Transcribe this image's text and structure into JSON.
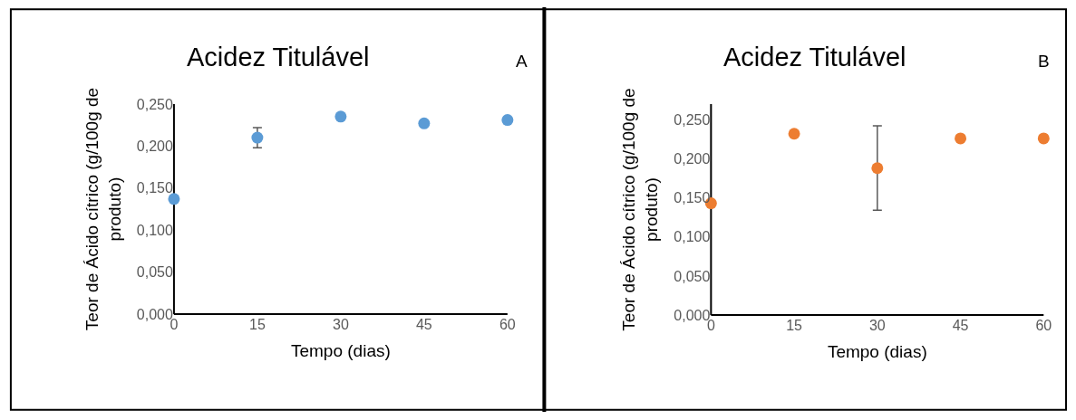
{
  "chart_data": [
    {
      "type": "scatter",
      "title": "Acidez Titulável",
      "xlabel": "Tempo (dias)",
      "ylabel": "Teor de Ácido cítrico (g/100g de produto)",
      "annotations": [
        "A"
      ],
      "x": [
        0,
        15,
        30,
        45,
        60
      ],
      "xlim": [
        0,
        60
      ],
      "xticks": [
        0,
        15,
        30,
        45,
        60
      ],
      "ylim": [
        0,
        0.25
      ],
      "yticks": [
        {
          "value": 0,
          "label": "0,000"
        },
        {
          "value": 0.05,
          "label": "0,050"
        },
        {
          "value": 0.1,
          "label": "0,100"
        },
        {
          "value": 0.15,
          "label": "0,150"
        },
        {
          "value": 0.2,
          "label": "0,200"
        },
        {
          "value": 0.25,
          "label": "0,250"
        }
      ],
      "marker": "circle",
      "series": [
        {
          "color": "#5b9bd5",
          "values": [
            0.137,
            0.21,
            0.235,
            0.227,
            0.231
          ],
          "errors": [
            null,
            0.012,
            null,
            null,
            null
          ]
        }
      ]
    },
    {
      "type": "scatter",
      "title": "Acidez Titulável",
      "xlabel": "Tempo (dias)",
      "ylabel": "Teor de Ácido cítrico (g/100g de produto)",
      "annotations": [
        "B"
      ],
      "x": [
        0,
        15,
        30,
        45,
        60
      ],
      "xlim": [
        0,
        60
      ],
      "xticks": [
        0,
        15,
        30,
        45,
        60
      ],
      "ylim": [
        0,
        0.27
      ],
      "yticks": [
        {
          "value": 0,
          "label": "0,000"
        },
        {
          "value": 0.05,
          "label": "0,050"
        },
        {
          "value": 0.1,
          "label": "0,100"
        },
        {
          "value": 0.15,
          "label": "0,150"
        },
        {
          "value": 0.2,
          "label": "0,200"
        },
        {
          "value": 0.25,
          "label": "0,250"
        }
      ],
      "marker": "circle",
      "series": [
        {
          "color": "#ed7d31",
          "values": [
            0.143,
            0.232,
            0.188,
            0.226,
            0.226
          ],
          "errors": [
            null,
            null,
            0.054,
            null,
            null
          ]
        }
      ]
    }
  ]
}
